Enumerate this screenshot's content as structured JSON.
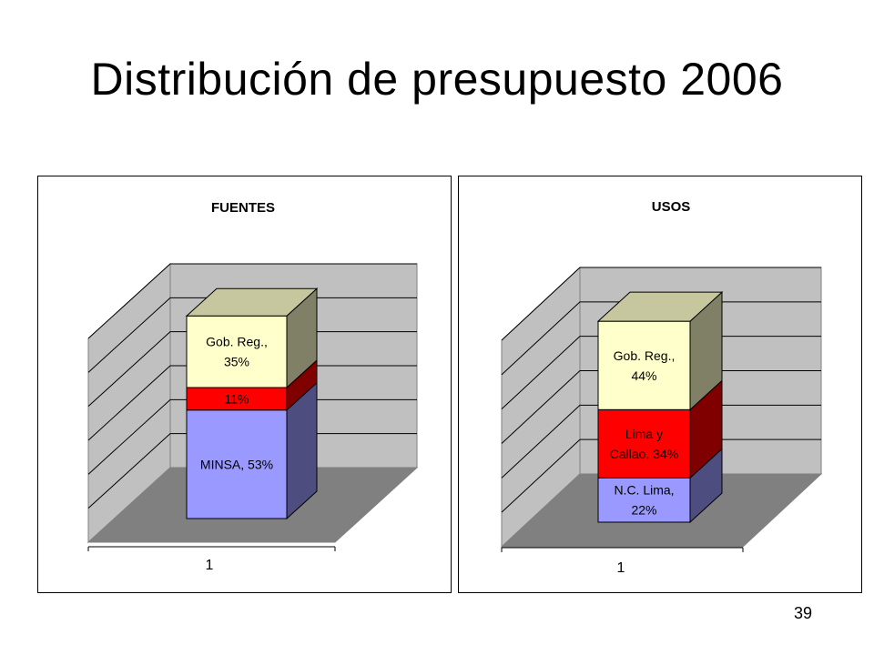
{
  "slide": {
    "title": "Distribución de presupuesto 2006",
    "page_number": "39"
  },
  "chart_data": [
    {
      "type": "bar",
      "stacked": true,
      "three_d": true,
      "title": "FUENTES",
      "categories": [
        "1"
      ],
      "ylim": [
        0,
        1.2
      ],
      "gridlines": true,
      "series": [
        {
          "label": "MINSA, 53%",
          "value": 0.53,
          "color": "#9999ff"
        },
        {
          "label": "11%",
          "value": 0.11,
          "color": "#ff0000"
        },
        {
          "label": "Gob. Reg.,\n35%",
          "value": 0.35,
          "color": "#ffffcc"
        }
      ]
    },
    {
      "type": "bar",
      "stacked": true,
      "three_d": true,
      "title": "USOS",
      "categories": [
        "1"
      ],
      "ylim": [
        0,
        1.2
      ],
      "gridlines": true,
      "series": [
        {
          "label": "N.C. Lima,\n22%",
          "value": 0.22,
          "color": "#9999ff"
        },
        {
          "label": "Lima y\nCallao, 34%",
          "value": 0.34,
          "color": "#ff0000"
        },
        {
          "label": "Gob. Reg.,\n44%",
          "value": 0.44,
          "color": "#ffffcc"
        }
      ]
    }
  ]
}
